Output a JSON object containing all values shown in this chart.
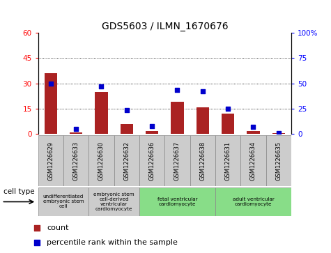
{
  "title": "GDS5603 / ILMN_1670676",
  "samples": [
    "GSM1226629",
    "GSM1226633",
    "GSM1226630",
    "GSM1226632",
    "GSM1226636",
    "GSM1226637",
    "GSM1226638",
    "GSM1226631",
    "GSM1226634",
    "GSM1226635"
  ],
  "counts": [
    36,
    1,
    25,
    6,
    2,
    19,
    16,
    12,
    2,
    0.5
  ],
  "percentiles": [
    50,
    5,
    47,
    24,
    8,
    44,
    42,
    25,
    7,
    1
  ],
  "ylim_left": [
    0,
    60
  ],
  "ylim_right": [
    0,
    100
  ],
  "yticks_left": [
    0,
    15,
    30,
    45,
    60
  ],
  "yticks_right": [
    0,
    25,
    50,
    75,
    100
  ],
  "bar_color": "#AA2222",
  "dot_color": "#0000CC",
  "cell_types": [
    {
      "label": "undifferentiated\nembryonic stem\ncell",
      "span": [
        0,
        2
      ],
      "color": "#cccccc"
    },
    {
      "label": "embryonic stem\ncell-derived\nventricular\ncardiomyocyte",
      "span": [
        2,
        4
      ],
      "color": "#cccccc"
    },
    {
      "label": "fetal ventricular\ncardiomyocyte",
      "span": [
        4,
        7
      ],
      "color": "#88dd88"
    },
    {
      "label": "adult ventricular\ncardiomyocyte",
      "span": [
        7,
        10
      ],
      "color": "#88dd88"
    }
  ],
  "legend_count_label": "count",
  "legend_percentile_label": "percentile rank within the sample",
  "cell_type_label": "cell type"
}
